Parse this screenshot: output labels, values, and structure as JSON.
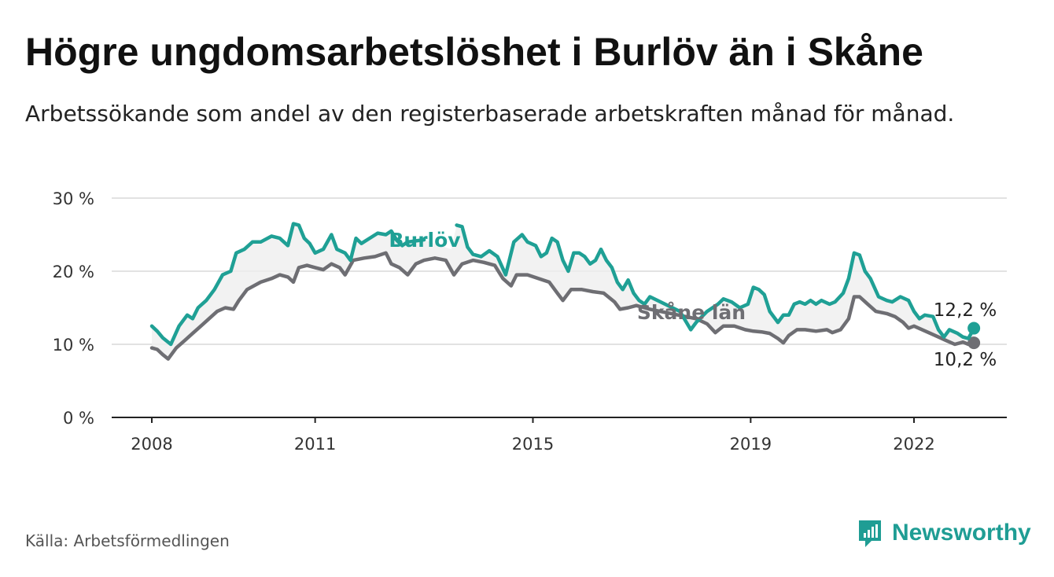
{
  "header": {
    "title": "Högre ungdomsarbetslöshet i Burlöv än i Skåne",
    "subtitle": "Arbetssökande som andel av den registerbaserade arbetskraften månad för månad."
  },
  "footer": {
    "source": "Källa: Arbetsförmedlingen",
    "brand": "Newsworthy"
  },
  "colors": {
    "burlov": "#1fa095",
    "skane": "#6e6e73",
    "grid": "#d9d9d9",
    "axis": "#222222",
    "band": "#efefef",
    "brand": "#1f9d94"
  },
  "chart_data": {
    "type": "line",
    "ylim": [
      0,
      30
    ],
    "yticks": [
      0,
      10,
      20,
      30
    ],
    "ytick_labels": [
      "0 %",
      "10 %",
      "20 %",
      "30 %"
    ],
    "xlim": [
      2007.5,
      2023.7
    ],
    "xticks": [
      2008,
      2011,
      2015,
      2019,
      2022
    ],
    "xtick_labels": [
      "2008",
      "2011",
      "2015",
      "2019",
      "2022"
    ],
    "series": [
      {
        "name": "Burlöv",
        "label": "Burlöv",
        "end_label": "12,2 %",
        "points": [
          [
            2008.0,
            12.5
          ],
          [
            2008.1,
            11.8
          ],
          [
            2008.2,
            10.9
          ],
          [
            2008.35,
            10.0
          ],
          [
            2008.5,
            12.5
          ],
          [
            2008.65,
            14.0
          ],
          [
            2008.75,
            13.5
          ],
          [
            2008.85,
            15.0
          ],
          [
            2009.0,
            16.0
          ],
          [
            2009.15,
            17.5
          ],
          [
            2009.3,
            19.5
          ],
          [
            2009.45,
            20.0
          ],
          [
            2009.55,
            22.5
          ],
          [
            2009.7,
            23.0
          ],
          [
            2009.85,
            24.0
          ],
          [
            2010.0,
            24.0
          ],
          [
            2010.2,
            24.8
          ],
          [
            2010.35,
            24.5
          ],
          [
            2010.5,
            23.5
          ],
          [
            2010.6,
            26.5
          ],
          [
            2010.7,
            26.3
          ],
          [
            2010.8,
            24.5
          ],
          [
            2010.9,
            23.8
          ],
          [
            2011.0,
            22.5
          ],
          [
            2011.15,
            23.0
          ],
          [
            2011.3,
            25.0
          ],
          [
            2011.4,
            23.0
          ],
          [
            2011.55,
            22.5
          ],
          [
            2011.65,
            21.5
          ],
          [
            2011.75,
            24.5
          ],
          [
            2011.85,
            23.8
          ],
          [
            2012.0,
            24.5
          ],
          [
            2012.15,
            25.2
          ],
          [
            2012.3,
            25.0
          ],
          [
            2012.4,
            25.5
          ],
          [
            2012.5,
            24.2
          ],
          [
            2012.6,
            23.5
          ],
          [
            2012.7,
            24.0
          ],
          [
            2013.0,
            24.3
          ],
          [
            2013.3,
            23.5
          ],
          [
            2013.5,
            23.0
          ],
          [
            2013.6,
            26.3
          ],
          [
            2013.7,
            26.1
          ],
          [
            2013.8,
            23.3
          ],
          [
            2013.9,
            22.3
          ],
          [
            2014.05,
            22.0
          ],
          [
            2014.2,
            22.8
          ],
          [
            2014.35,
            22.0
          ],
          [
            2014.5,
            19.5
          ],
          [
            2014.65,
            24.0
          ],
          [
            2014.8,
            25.0
          ],
          [
            2014.9,
            24.0
          ],
          [
            2015.05,
            23.5
          ],
          [
            2015.15,
            22.0
          ],
          [
            2015.25,
            22.5
          ],
          [
            2015.35,
            24.5
          ],
          [
            2015.45,
            24.0
          ],
          [
            2015.55,
            21.5
          ],
          [
            2015.65,
            20.0
          ],
          [
            2015.75,
            22.5
          ],
          [
            2015.85,
            22.5
          ],
          [
            2015.95,
            22.0
          ],
          [
            2016.05,
            21.0
          ],
          [
            2016.15,
            21.5
          ],
          [
            2016.25,
            23.0
          ],
          [
            2016.35,
            21.5
          ],
          [
            2016.45,
            20.5
          ],
          [
            2016.55,
            18.5
          ],
          [
            2016.65,
            17.5
          ],
          [
            2016.75,
            18.8
          ],
          [
            2016.85,
            17.0
          ],
          [
            2016.95,
            16.0
          ],
          [
            2017.05,
            15.5
          ],
          [
            2017.15,
            16.5
          ],
          [
            2017.7,
            14.5
          ],
          [
            2017.9,
            12.0
          ],
          [
            2018.0,
            13.0
          ],
          [
            2018.2,
            14.5
          ],
          [
            2018.4,
            15.5
          ],
          [
            2018.5,
            16.2
          ],
          [
            2018.65,
            15.8
          ],
          [
            2018.8,
            15.0
          ],
          [
            2018.95,
            15.5
          ],
          [
            2019.05,
            17.8
          ],
          [
            2019.15,
            17.5
          ],
          [
            2019.25,
            16.8
          ],
          [
            2019.35,
            14.5
          ],
          [
            2019.5,
            13.0
          ],
          [
            2019.6,
            14.0
          ],
          [
            2019.7,
            14.0
          ],
          [
            2019.8,
            15.5
          ],
          [
            2019.9,
            15.8
          ],
          [
            2020.0,
            15.5
          ],
          [
            2020.1,
            16.0
          ],
          [
            2020.2,
            15.5
          ],
          [
            2020.3,
            16.0
          ],
          [
            2020.45,
            15.5
          ],
          [
            2020.55,
            15.8
          ],
          [
            2020.7,
            17.0
          ],
          [
            2020.8,
            19.0
          ],
          [
            2020.9,
            22.5
          ],
          [
            2021.0,
            22.2
          ],
          [
            2021.1,
            20.0
          ],
          [
            2021.2,
            19.0
          ],
          [
            2021.35,
            16.5
          ],
          [
            2021.5,
            16.0
          ],
          [
            2021.6,
            15.8
          ],
          [
            2021.75,
            16.5
          ],
          [
            2021.9,
            16.0
          ],
          [
            2022.0,
            14.5
          ],
          [
            2022.1,
            13.5
          ],
          [
            2022.2,
            14.0
          ],
          [
            2022.35,
            13.8
          ],
          [
            2022.45,
            12.0
          ],
          [
            2022.55,
            11.0
          ],
          [
            2022.65,
            12.0
          ],
          [
            2022.8,
            11.5
          ],
          [
            2022.9,
            11.0
          ],
          [
            2023.0,
            10.8
          ],
          [
            2023.1,
            12.2
          ]
        ]
      },
      {
        "name": "Skåne län",
        "label": "Skåne län",
        "end_label": "10,2 %",
        "points": [
          [
            2008.0,
            9.5
          ],
          [
            2008.1,
            9.3
          ],
          [
            2008.2,
            8.6
          ],
          [
            2008.3,
            8.0
          ],
          [
            2008.45,
            9.5
          ],
          [
            2008.6,
            10.5
          ],
          [
            2008.75,
            11.5
          ],
          [
            2008.9,
            12.5
          ],
          [
            2009.05,
            13.5
          ],
          [
            2009.2,
            14.5
          ],
          [
            2009.35,
            15.0
          ],
          [
            2009.5,
            14.8
          ],
          [
            2009.6,
            16.0
          ],
          [
            2009.75,
            17.5
          ],
          [
            2010.0,
            18.5
          ],
          [
            2010.2,
            19.0
          ],
          [
            2010.35,
            19.5
          ],
          [
            2010.5,
            19.2
          ],
          [
            2010.6,
            18.5
          ],
          [
            2010.7,
            20.5
          ],
          [
            2010.85,
            20.8
          ],
          [
            2011.0,
            20.5
          ],
          [
            2011.15,
            20.2
          ],
          [
            2011.3,
            21.0
          ],
          [
            2011.45,
            20.5
          ],
          [
            2011.55,
            19.5
          ],
          [
            2011.7,
            21.5
          ],
          [
            2011.9,
            21.8
          ],
          [
            2012.1,
            22.0
          ],
          [
            2012.3,
            22.5
          ],
          [
            2012.4,
            21.0
          ],
          [
            2012.55,
            20.5
          ],
          [
            2012.7,
            19.5
          ],
          [
            2012.85,
            21.0
          ],
          [
            2013.0,
            21.5
          ],
          [
            2013.2,
            21.8
          ],
          [
            2013.4,
            21.5
          ],
          [
            2013.55,
            19.5
          ],
          [
            2013.7,
            21.0
          ],
          [
            2013.9,
            21.5
          ],
          [
            2014.1,
            21.2
          ],
          [
            2014.3,
            20.8
          ],
          [
            2014.45,
            19.0
          ],
          [
            2014.6,
            18.0
          ],
          [
            2014.7,
            19.5
          ],
          [
            2014.9,
            19.5
          ],
          [
            2015.1,
            19.0
          ],
          [
            2015.3,
            18.5
          ],
          [
            2015.45,
            17.0
          ],
          [
            2015.55,
            16.0
          ],
          [
            2015.7,
            17.5
          ],
          [
            2015.9,
            17.5
          ],
          [
            2016.1,
            17.2
          ],
          [
            2016.3,
            17.0
          ],
          [
            2016.5,
            15.8
          ],
          [
            2016.6,
            14.8
          ],
          [
            2016.75,
            15.0
          ],
          [
            2016.9,
            15.3
          ],
          [
            2017.05,
            15.0
          ],
          [
            2017.15,
            14.8
          ],
          [
            2018.0,
            13.5
          ],
          [
            2018.2,
            12.8
          ],
          [
            2018.35,
            11.6
          ],
          [
            2018.5,
            12.5
          ],
          [
            2018.7,
            12.5
          ],
          [
            2018.9,
            12.0
          ],
          [
            2019.05,
            11.8
          ],
          [
            2019.2,
            11.7
          ],
          [
            2019.35,
            11.5
          ],
          [
            2019.5,
            10.8
          ],
          [
            2019.6,
            10.2
          ],
          [
            2019.7,
            11.2
          ],
          [
            2019.85,
            12.0
          ],
          [
            2020.0,
            12.0
          ],
          [
            2020.2,
            11.8
          ],
          [
            2020.4,
            12.0
          ],
          [
            2020.5,
            11.6
          ],
          [
            2020.65,
            12.0
          ],
          [
            2020.8,
            13.5
          ],
          [
            2020.9,
            16.5
          ],
          [
            2021.0,
            16.5
          ],
          [
            2021.15,
            15.5
          ],
          [
            2021.3,
            14.5
          ],
          [
            2021.5,
            14.2
          ],
          [
            2021.65,
            13.8
          ],
          [
            2021.8,
            13.0
          ],
          [
            2021.9,
            12.2
          ],
          [
            2022.0,
            12.5
          ],
          [
            2022.15,
            12.0
          ],
          [
            2022.3,
            11.5
          ],
          [
            2022.45,
            11.0
          ],
          [
            2022.6,
            10.5
          ],
          [
            2022.75,
            10.0
          ],
          [
            2022.9,
            10.3
          ],
          [
            2023.0,
            10.0
          ],
          [
            2023.1,
            10.2
          ]
        ]
      }
    ]
  }
}
